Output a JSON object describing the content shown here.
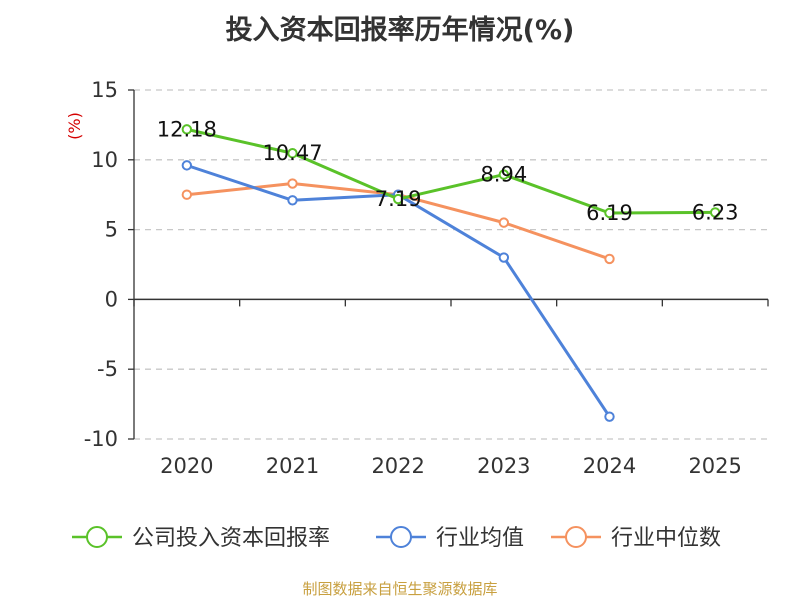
{
  "chart_data": {
    "type": "line",
    "title": "投入资本回报率历年情况(%)",
    "ylabel": "(%)",
    "xlabel": "",
    "categories": [
      "2020",
      "2021",
      "2022",
      "2023",
      "2024",
      "2025"
    ],
    "ylim": [
      -10,
      15
    ],
    "yticks": [
      15,
      10,
      5,
      0,
      -5,
      -10
    ],
    "grid": true,
    "legend_position": "bottom",
    "series": [
      {
        "name": "公司投入资本回报率",
        "color": "#5ac229",
        "values": [
          12.18,
          10.47,
          7.19,
          8.94,
          6.19,
          6.23
        ],
        "labels": [
          "12.18",
          "10.47",
          "7.19",
          "8.94",
          "6.19",
          "6.23"
        ]
      },
      {
        "name": "行业均值",
        "color": "#4e82d9",
        "values": [
          9.6,
          7.1,
          7.5,
          3.0,
          -8.4,
          null
        ]
      },
      {
        "name": "行业中位数",
        "color": "#f5925f",
        "values": [
          7.5,
          8.3,
          7.5,
          5.5,
          2.9,
          null
        ]
      }
    ]
  },
  "source": "制图数据来自恒生聚源数据库"
}
